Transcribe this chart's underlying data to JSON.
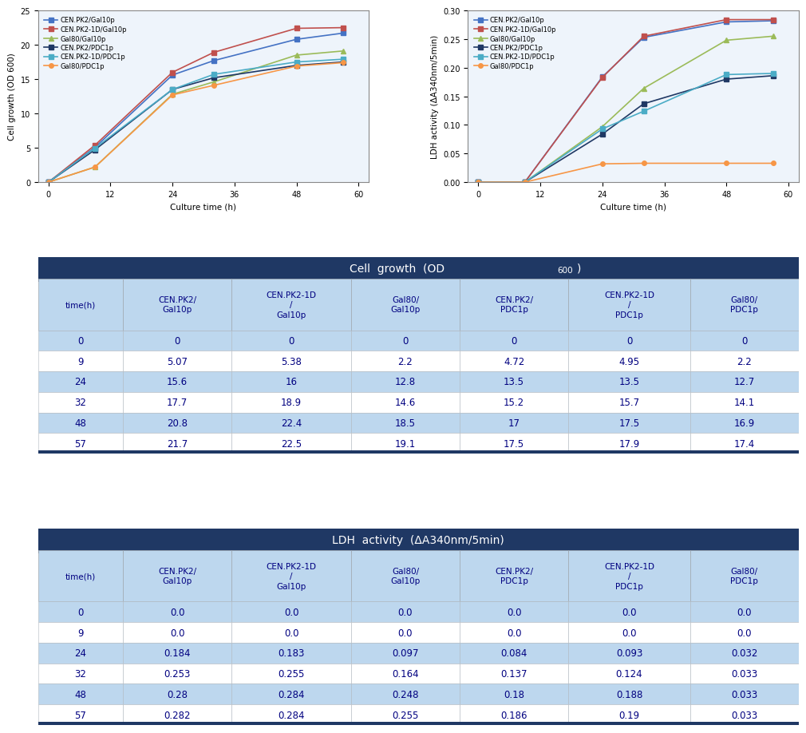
{
  "time_points": [
    0,
    9,
    24,
    32,
    48,
    57
  ],
  "cell_growth": {
    "CEN.PK2/Gal10p": [
      0,
      5.07,
      15.6,
      17.7,
      20.8,
      21.7
    ],
    "CEN.PK2-1D/Gal10p": [
      0,
      5.38,
      16.0,
      18.9,
      22.4,
      22.5
    ],
    "Gal80/Gal10p": [
      0,
      2.2,
      12.8,
      14.6,
      18.5,
      19.1
    ],
    "CEN.PK2/PDC1p": [
      0,
      4.72,
      13.5,
      15.2,
      17.0,
      17.5
    ],
    "CEN.PK2-1D/PDC1p": [
      0,
      4.95,
      13.5,
      15.7,
      17.5,
      17.9
    ],
    "Gal80/PDC1p": [
      0,
      2.2,
      12.7,
      14.1,
      16.9,
      17.4
    ]
  },
  "ldh_activity": {
    "CEN.PK2/Gal10p": [
      0.0,
      0.0,
      0.184,
      0.253,
      0.28,
      0.282
    ],
    "CEN.PK2-1D/Gal10p": [
      0.0,
      0.0,
      0.183,
      0.255,
      0.284,
      0.284
    ],
    "Gal80/Gal10p": [
      0.0,
      0.0,
      0.097,
      0.164,
      0.248,
      0.255
    ],
    "CEN.PK2/PDC1p": [
      0.0,
      0.0,
      0.084,
      0.137,
      0.18,
      0.186
    ],
    "CEN.PK2-1D/PDC1p": [
      0.0,
      0.0,
      0.093,
      0.124,
      0.188,
      0.19
    ],
    "Gal80/PDC1p": [
      0.0,
      0.0,
      0.032,
      0.033,
      0.033,
      0.033
    ]
  },
  "series_colors": {
    "CEN.PK2/Gal10p": "#4472C4",
    "CEN.PK2-1D/Gal10p": "#C0504D",
    "Gal80/Gal10p": "#9BBB59",
    "CEN.PK2/PDC1p": "#1F3864",
    "CEN.PK2-1D/PDC1p": "#4BACC6",
    "Gal80/PDC1p": "#F79646"
  },
  "series_markers": {
    "CEN.PK2/Gal10p": "s",
    "CEN.PK2-1D/Gal10p": "s",
    "Gal80/Gal10p": "^",
    "CEN.PK2/PDC1p": "s",
    "CEN.PK2-1D/PDC1p": "s",
    "Gal80/PDC1p": "o"
  },
  "graph1_ylabel": "Cell growth (OD 600)",
  "graph1_xlabel": "Culture time (h)",
  "graph1_ylim": [
    0,
    25
  ],
  "graph1_yticks": [
    0,
    5,
    10,
    15,
    20,
    25
  ],
  "graph2_ylabel": "LDH activity (ΔA340nm/5min)",
  "graph2_xlabel": "Culture time (h)",
  "graph2_ylim": [
    0,
    0.3
  ],
  "graph2_yticks": [
    0,
    0.05,
    0.1,
    0.15,
    0.2,
    0.25,
    0.3
  ],
  "xticks": [
    0,
    12,
    24,
    36,
    48,
    60
  ],
  "col_headers": [
    "time(h)",
    "CEN.PK2/\nGal10p",
    "CEN.PK2-1D\n/\nGal10p",
    "Gal80/\nGal10p",
    "CEN.PK2/\nPDC1p",
    "CEN.PK2-1D\n/\nPDC1p",
    "Gal80/\nPDC1p"
  ],
  "table1_data": [
    [
      0,
      0,
      0,
      0,
      0,
      0,
      0
    ],
    [
      9,
      5.07,
      5.38,
      2.2,
      4.72,
      4.95,
      2.2
    ],
    [
      24,
      15.6,
      16.0,
      12.8,
      13.5,
      13.5,
      12.7
    ],
    [
      32,
      17.7,
      18.9,
      14.6,
      15.2,
      15.7,
      14.1
    ],
    [
      48,
      20.8,
      22.4,
      18.5,
      17.0,
      17.5,
      16.9
    ],
    [
      57,
      21.7,
      22.5,
      19.1,
      17.5,
      17.9,
      17.4
    ]
  ],
  "table2_data": [
    [
      0,
      0.0,
      0.0,
      0.0,
      0.0,
      0.0,
      0.0
    ],
    [
      9,
      0.0,
      0.0,
      0.0,
      0.0,
      0.0,
      0.0
    ],
    [
      24,
      0.184,
      0.183,
      0.097,
      0.084,
      0.093,
      0.032
    ],
    [
      32,
      0.253,
      0.255,
      0.164,
      0.137,
      0.124,
      0.033
    ],
    [
      48,
      0.28,
      0.284,
      0.248,
      0.18,
      0.188,
      0.033
    ],
    [
      57,
      0.282,
      0.284,
      0.255,
      0.186,
      0.19,
      0.033
    ]
  ],
  "header_bg": "#1F3864",
  "header_fg": "#FFFFFF",
  "subheader_bg": "#BDD7EE",
  "row_bg_even": "#FFFFFF",
  "row_bg_odd": "#BDD7EE",
  "table_text_color": "#000080",
  "background_color": "#FFFFFF"
}
